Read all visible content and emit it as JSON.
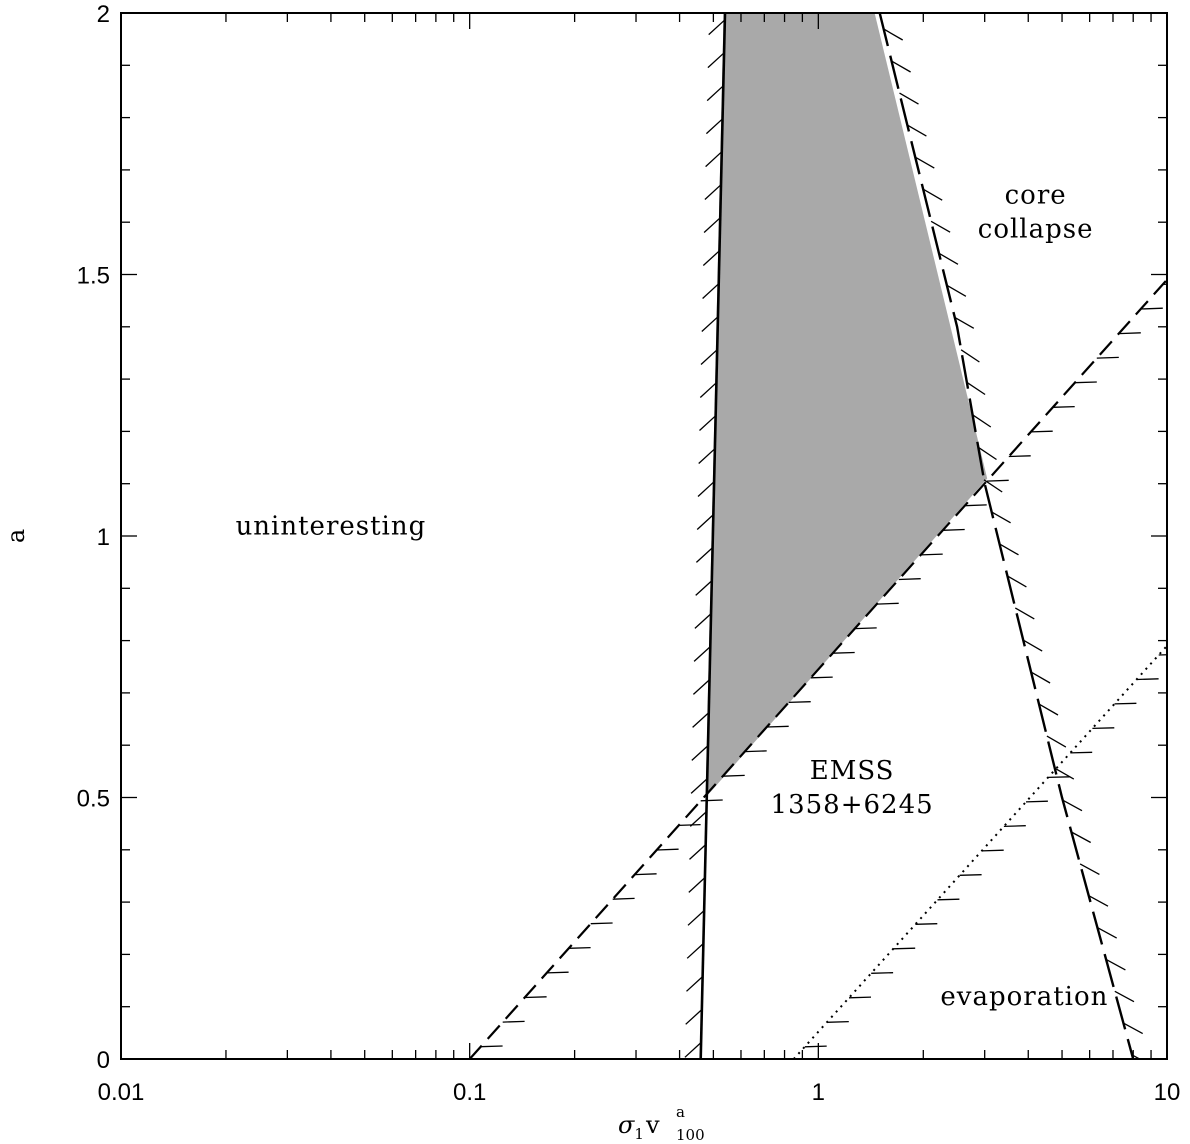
{
  "chart_data": {
    "type": "line",
    "x_scale": "log",
    "xlim": [
      0.01,
      10
    ],
    "ylim": [
      0,
      2
    ],
    "xlabel": {
      "main": "σ",
      "sub1": "1",
      "v": "v",
      "sup": "a",
      "sub2": "100"
    },
    "ylabel": "a",
    "x_ticks": [
      {
        "value": 0.01,
        "label": "0.01"
      },
      {
        "value": 0.1,
        "label": "0.1"
      },
      {
        "value": 1,
        "label": "1"
      },
      {
        "value": 10,
        "label": "10"
      }
    ],
    "y_ticks": [
      {
        "value": 0,
        "label": "0"
      },
      {
        "value": 0.5,
        "label": "0.5"
      },
      {
        "value": 1,
        "label": "1"
      },
      {
        "value": 1.5,
        "label": "1.5"
      },
      {
        "value": 2,
        "label": "2"
      }
    ],
    "series": [
      {
        "style": "solid",
        "hatch_side": "left",
        "points": [
          [
            0.46,
            0
          ],
          [
            0.54,
            2
          ]
        ]
      },
      {
        "style": "dashed",
        "hatch_side": "right",
        "points": [
          [
            0.1,
            0
          ],
          [
            10,
            1.49
          ]
        ]
      },
      {
        "style": "long-dashed",
        "hatch_side": "right",
        "points": [
          [
            1.5,
            2
          ],
          [
            2.5,
            1.4
          ],
          [
            3.0,
            1.1
          ],
          [
            5.0,
            0.5
          ],
          [
            8.0,
            0
          ]
        ]
      },
      {
        "style": "dotted",
        "hatch_side": "right",
        "points": [
          [
            0.85,
            0
          ],
          [
            10,
            0.79
          ]
        ]
      }
    ],
    "shaded_region": {
      "color": "#a9a9a9",
      "points": [
        [
          0.535,
          2
        ],
        [
          1.45,
          2
        ],
        [
          3.05,
          1.11
        ],
        [
          0.475,
          0.5
        ]
      ]
    },
    "annotations": [
      {
        "id": "uninteresting",
        "lines": [
          "uninteresting"
        ],
        "x": 0.04,
        "y": 1.02
      },
      {
        "id": "core-collapse",
        "lines": [
          "core",
          "collapse"
        ],
        "x": 4.2,
        "y": 1.62
      },
      {
        "id": "emss",
        "lines": [
          "EMSS",
          "1358+6245"
        ],
        "x": 1.25,
        "y": 0.52
      },
      {
        "id": "evaporation",
        "lines": [
          "evaporation"
        ],
        "x": 3.9,
        "y": 0.12
      }
    ]
  }
}
